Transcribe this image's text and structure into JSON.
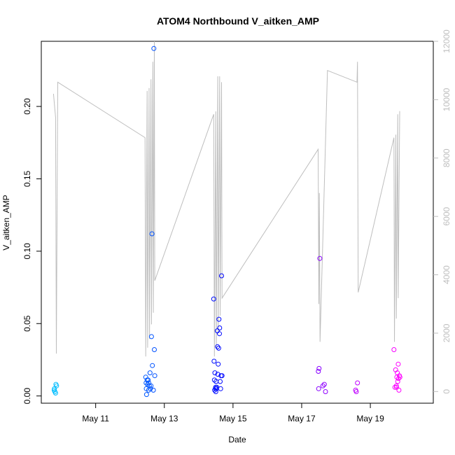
{
  "chart_data": {
    "type": "scatter",
    "title": "ATOM4 Northbound V_aitken_AMP",
    "xlabel": "Date",
    "ylabel": "V_aitken_AMP",
    "x_range": [
      "2016-05-09T10:00",
      "2016-05-20T20:00"
    ],
    "ylim": [
      -0.005,
      0.245
    ],
    "y_ticks": [
      "0.00",
      "0.05",
      "0.10",
      "0.15",
      "0.20"
    ],
    "y_right_range": [
      -400,
      12000
    ],
    "y_right_ticks": [
      "0",
      "2000",
      "4000",
      "6000",
      "8000",
      "10000",
      "12000"
    ],
    "x_ticks": [
      {
        "label": "May 11",
        "date": "2016-05-11T00:00"
      },
      {
        "label": "May 13",
        "date": "2016-05-13T00:00"
      },
      {
        "label": "May 15",
        "date": "2016-05-15T00:00"
      },
      {
        "label": "May 17",
        "date": "2016-05-17T00:00"
      },
      {
        "label": "May 19",
        "date": "2016-05-19T00:00"
      }
    ],
    "grid": false,
    "legend": "none",
    "point_color_start": "#00bfff",
    "point_color_mid": "#0000ff",
    "point_color_end": "#ff00ff",
    "line_color": "#bebebe",
    "points": [
      [
        "2016-05-09T19:00",
        0.004
      ],
      [
        "2016-05-09T19:30",
        0.003
      ],
      [
        "2016-05-09T20:00",
        0.002
      ],
      [
        "2016-05-09T20:15",
        0.008
      ],
      [
        "2016-05-09T20:40",
        0.007
      ],
      [
        "2016-05-09T19:10",
        0.005
      ],
      [
        "2016-05-12T11:00",
        0.013
      ],
      [
        "2016-05-12T11:15",
        0.009
      ],
      [
        "2016-05-12T11:25",
        0.005
      ],
      [
        "2016-05-12T11:35",
        0.001
      ],
      [
        "2016-05-12T12:00",
        0.011
      ],
      [
        "2016-05-12T12:20",
        0.008
      ],
      [
        "2016-05-12T12:40",
        0.011
      ],
      [
        "2016-05-12T13:00",
        0.004
      ],
      [
        "2016-05-12T13:10",
        0.009
      ],
      [
        "2016-05-12T13:30",
        0.007
      ],
      [
        "2016-05-12T14:00",
        0.016
      ],
      [
        "2016-05-12T14:20",
        0.005
      ],
      [
        "2016-05-12T14:40",
        0.007
      ],
      [
        "2016-05-12T15:00",
        0.041
      ],
      [
        "2016-05-12T15:20",
        0.112
      ],
      [
        "2016-05-12T15:40",
        0.021
      ],
      [
        "2016-05-12T16:20",
        0.004
      ],
      [
        "2016-05-12T16:40",
        0.24
      ],
      [
        "2016-05-12T17:00",
        0.032
      ],
      [
        "2016-05-12T17:20",
        0.014
      ],
      [
        "2016-05-14T10:30",
        0.067
      ],
      [
        "2016-05-14T10:45",
        0.024
      ],
      [
        "2016-05-14T11:00",
        0.011
      ],
      [
        "2016-05-14T11:10",
        0.004
      ],
      [
        "2016-05-14T11:20",
        0.016
      ],
      [
        "2016-05-14T11:40",
        0.005
      ],
      [
        "2016-05-14T12:00",
        0.003
      ],
      [
        "2016-05-14T12:10",
        0.01
      ],
      [
        "2016-05-14T12:30",
        0.005
      ],
      [
        "2016-05-14T13:00",
        0.045
      ],
      [
        "2016-05-14T13:10",
        0.034
      ],
      [
        "2016-05-14T13:20",
        0.015
      ],
      [
        "2016-05-14T13:40",
        0.022
      ],
      [
        "2016-05-14T14:00",
        0.033
      ],
      [
        "2016-05-14T14:10",
        0.053
      ],
      [
        "2016-05-14T14:30",
        0.043
      ],
      [
        "2016-05-14T14:40",
        0.047
      ],
      [
        "2016-05-14T15:00",
        0.01
      ],
      [
        "2016-05-14T15:20",
        0.005
      ],
      [
        "2016-05-14T15:40",
        0.014
      ],
      [
        "2016-05-14T16:00",
        0.083
      ],
      [
        "2016-05-14T16:20",
        0.014
      ],
      [
        "2016-05-14T11:50",
        0.006
      ],
      [
        "2016-05-14T12:40",
        0.006
      ],
      [
        "2016-05-17T11:40",
        0.017
      ],
      [
        "2016-05-17T11:50",
        0.005
      ],
      [
        "2016-05-17T12:10",
        0.019
      ],
      [
        "2016-05-17T12:40",
        0.095
      ],
      [
        "2016-05-17T14:50",
        0.007
      ],
      [
        "2016-05-17T15:50",
        0.008
      ],
      [
        "2016-05-17T16:40",
        0.003
      ],
      [
        "2016-05-18T13:40",
        0.004
      ],
      [
        "2016-05-18T14:10",
        0.003
      ],
      [
        "2016-05-18T15:00",
        0.009
      ],
      [
        "2016-05-19T16:30",
        0.032
      ],
      [
        "2016-05-19T17:10",
        0.006
      ],
      [
        "2016-05-19T17:40",
        0.018
      ],
      [
        "2016-05-19T18:10",
        0.007
      ],
      [
        "2016-05-19T18:30",
        0.013
      ],
      [
        "2016-05-19T18:50",
        0.016
      ],
      [
        "2016-05-19T19:10",
        0.01
      ],
      [
        "2016-05-19T19:30",
        0.022
      ],
      [
        "2016-05-19T19:40",
        0.012
      ],
      [
        "2016-05-19T20:00",
        0.004
      ],
      [
        "2016-05-19T20:20",
        0.014
      ],
      [
        "2016-05-19T20:40",
        0.013
      ],
      [
        "2016-05-19T18:20",
        0.006
      ]
    ],
    "line_series": [
      [
        "2016-05-09T18:30",
        10200
      ],
      [
        "2016-05-09T20:00",
        9400
      ],
      [
        "2016-05-09T20:30",
        1300
      ],
      [
        "2016-05-09T21:30",
        10600
      ],
      [
        "2016-05-12T10:30",
        8700
      ],
      [
        "2016-05-12T11:00",
        1200
      ],
      [
        "2016-05-12T12:00",
        10300
      ],
      [
        "2016-05-12T12:20",
        1500
      ],
      [
        "2016-05-12T13:20",
        10400
      ],
      [
        "2016-05-12T13:40",
        1800
      ],
      [
        "2016-05-12T14:40",
        10700
      ],
      [
        "2016-05-12T15:00",
        2300
      ],
      [
        "2016-05-12T16:00",
        11300
      ],
      [
        "2016-05-12T16:20",
        2700
      ],
      [
        "2016-05-12T17:00",
        12000
      ],
      [
        "2016-05-12T17:20",
        3800
      ],
      [
        "2016-05-14T10:30",
        9500
      ],
      [
        "2016-05-14T11:00",
        1200
      ],
      [
        "2016-05-14T12:00",
        9600
      ],
      [
        "2016-05-14T12:20",
        1500
      ],
      [
        "2016-05-14T13:20",
        10800
      ],
      [
        "2016-05-14T13:40",
        2000
      ],
      [
        "2016-05-14T14:40",
        10800
      ],
      [
        "2016-05-14T15:00",
        2600
      ],
      [
        "2016-05-14T16:00",
        10600
      ],
      [
        "2016-05-14T16:20",
        3200
      ],
      [
        "2016-05-17T11:30",
        8300
      ],
      [
        "2016-05-17T12:00",
        3000
      ],
      [
        "2016-05-17T12:20",
        6800
      ],
      [
        "2016-05-17T12:50",
        1700
      ],
      [
        "2016-05-17T18:00",
        11000
      ],
      [
        "2016-05-18T14:40",
        10600
      ],
      [
        "2016-05-18T15:00",
        11300
      ],
      [
        "2016-05-18T15:30",
        3400
      ],
      [
        "2016-05-19T16:30",
        8700
      ],
      [
        "2016-05-19T16:50",
        1700
      ],
      [
        "2016-05-19T17:50",
        8800
      ],
      [
        "2016-05-19T18:10",
        2500
      ],
      [
        "2016-05-19T19:10",
        9500
      ],
      [
        "2016-05-19T19:30",
        3200
      ],
      [
        "2016-05-19T20:30",
        9600
      ],
      [
        "2016-05-19T20:40",
        9600
      ]
    ]
  }
}
